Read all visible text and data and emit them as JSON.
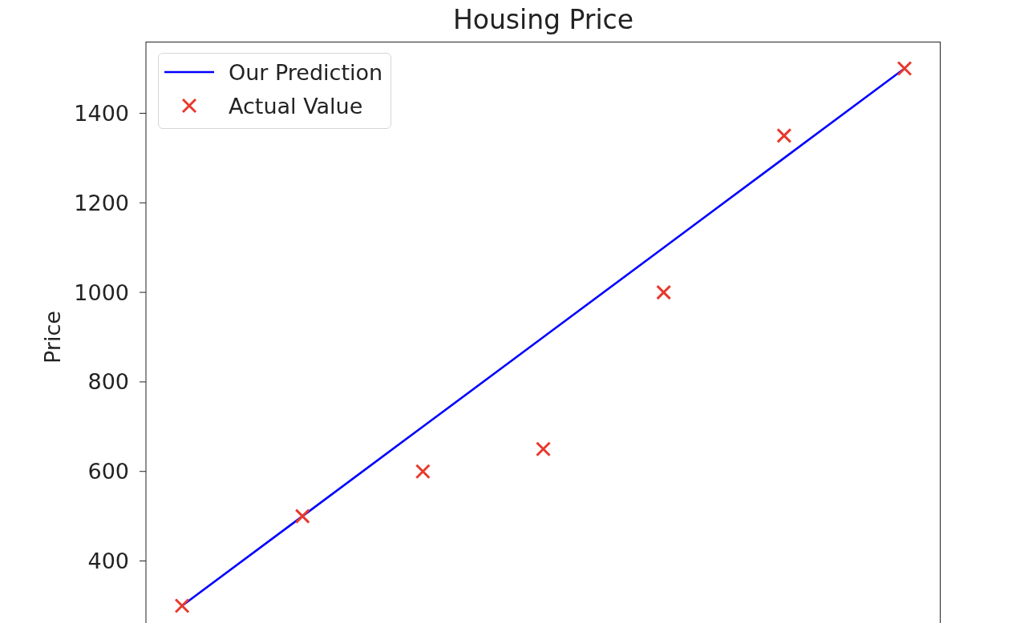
{
  "chart_data": {
    "type": "line",
    "title": "Housing Price",
    "ylabel": "Price",
    "categories": [
      null,
      null,
      null,
      null,
      null,
      null,
      null
    ],
    "series": [
      {
        "name": "Our Prediction",
        "color": "#0000ff",
        "marker": "none",
        "values": [
          300,
          500,
          700,
          900,
          1100,
          1300,
          1500
        ]
      },
      {
        "name": "Actual Value",
        "type": "scatter",
        "color": "#e8392d",
        "marker": "cross",
        "values": [
          300,
          500,
          600,
          650,
          1000,
          1350,
          1500
        ]
      }
    ],
    "ylim": [
      240,
      1560
    ],
    "yticks": [
      400,
      600,
      800,
      1000,
      1200,
      1400
    ],
    "legend": "top left"
  }
}
